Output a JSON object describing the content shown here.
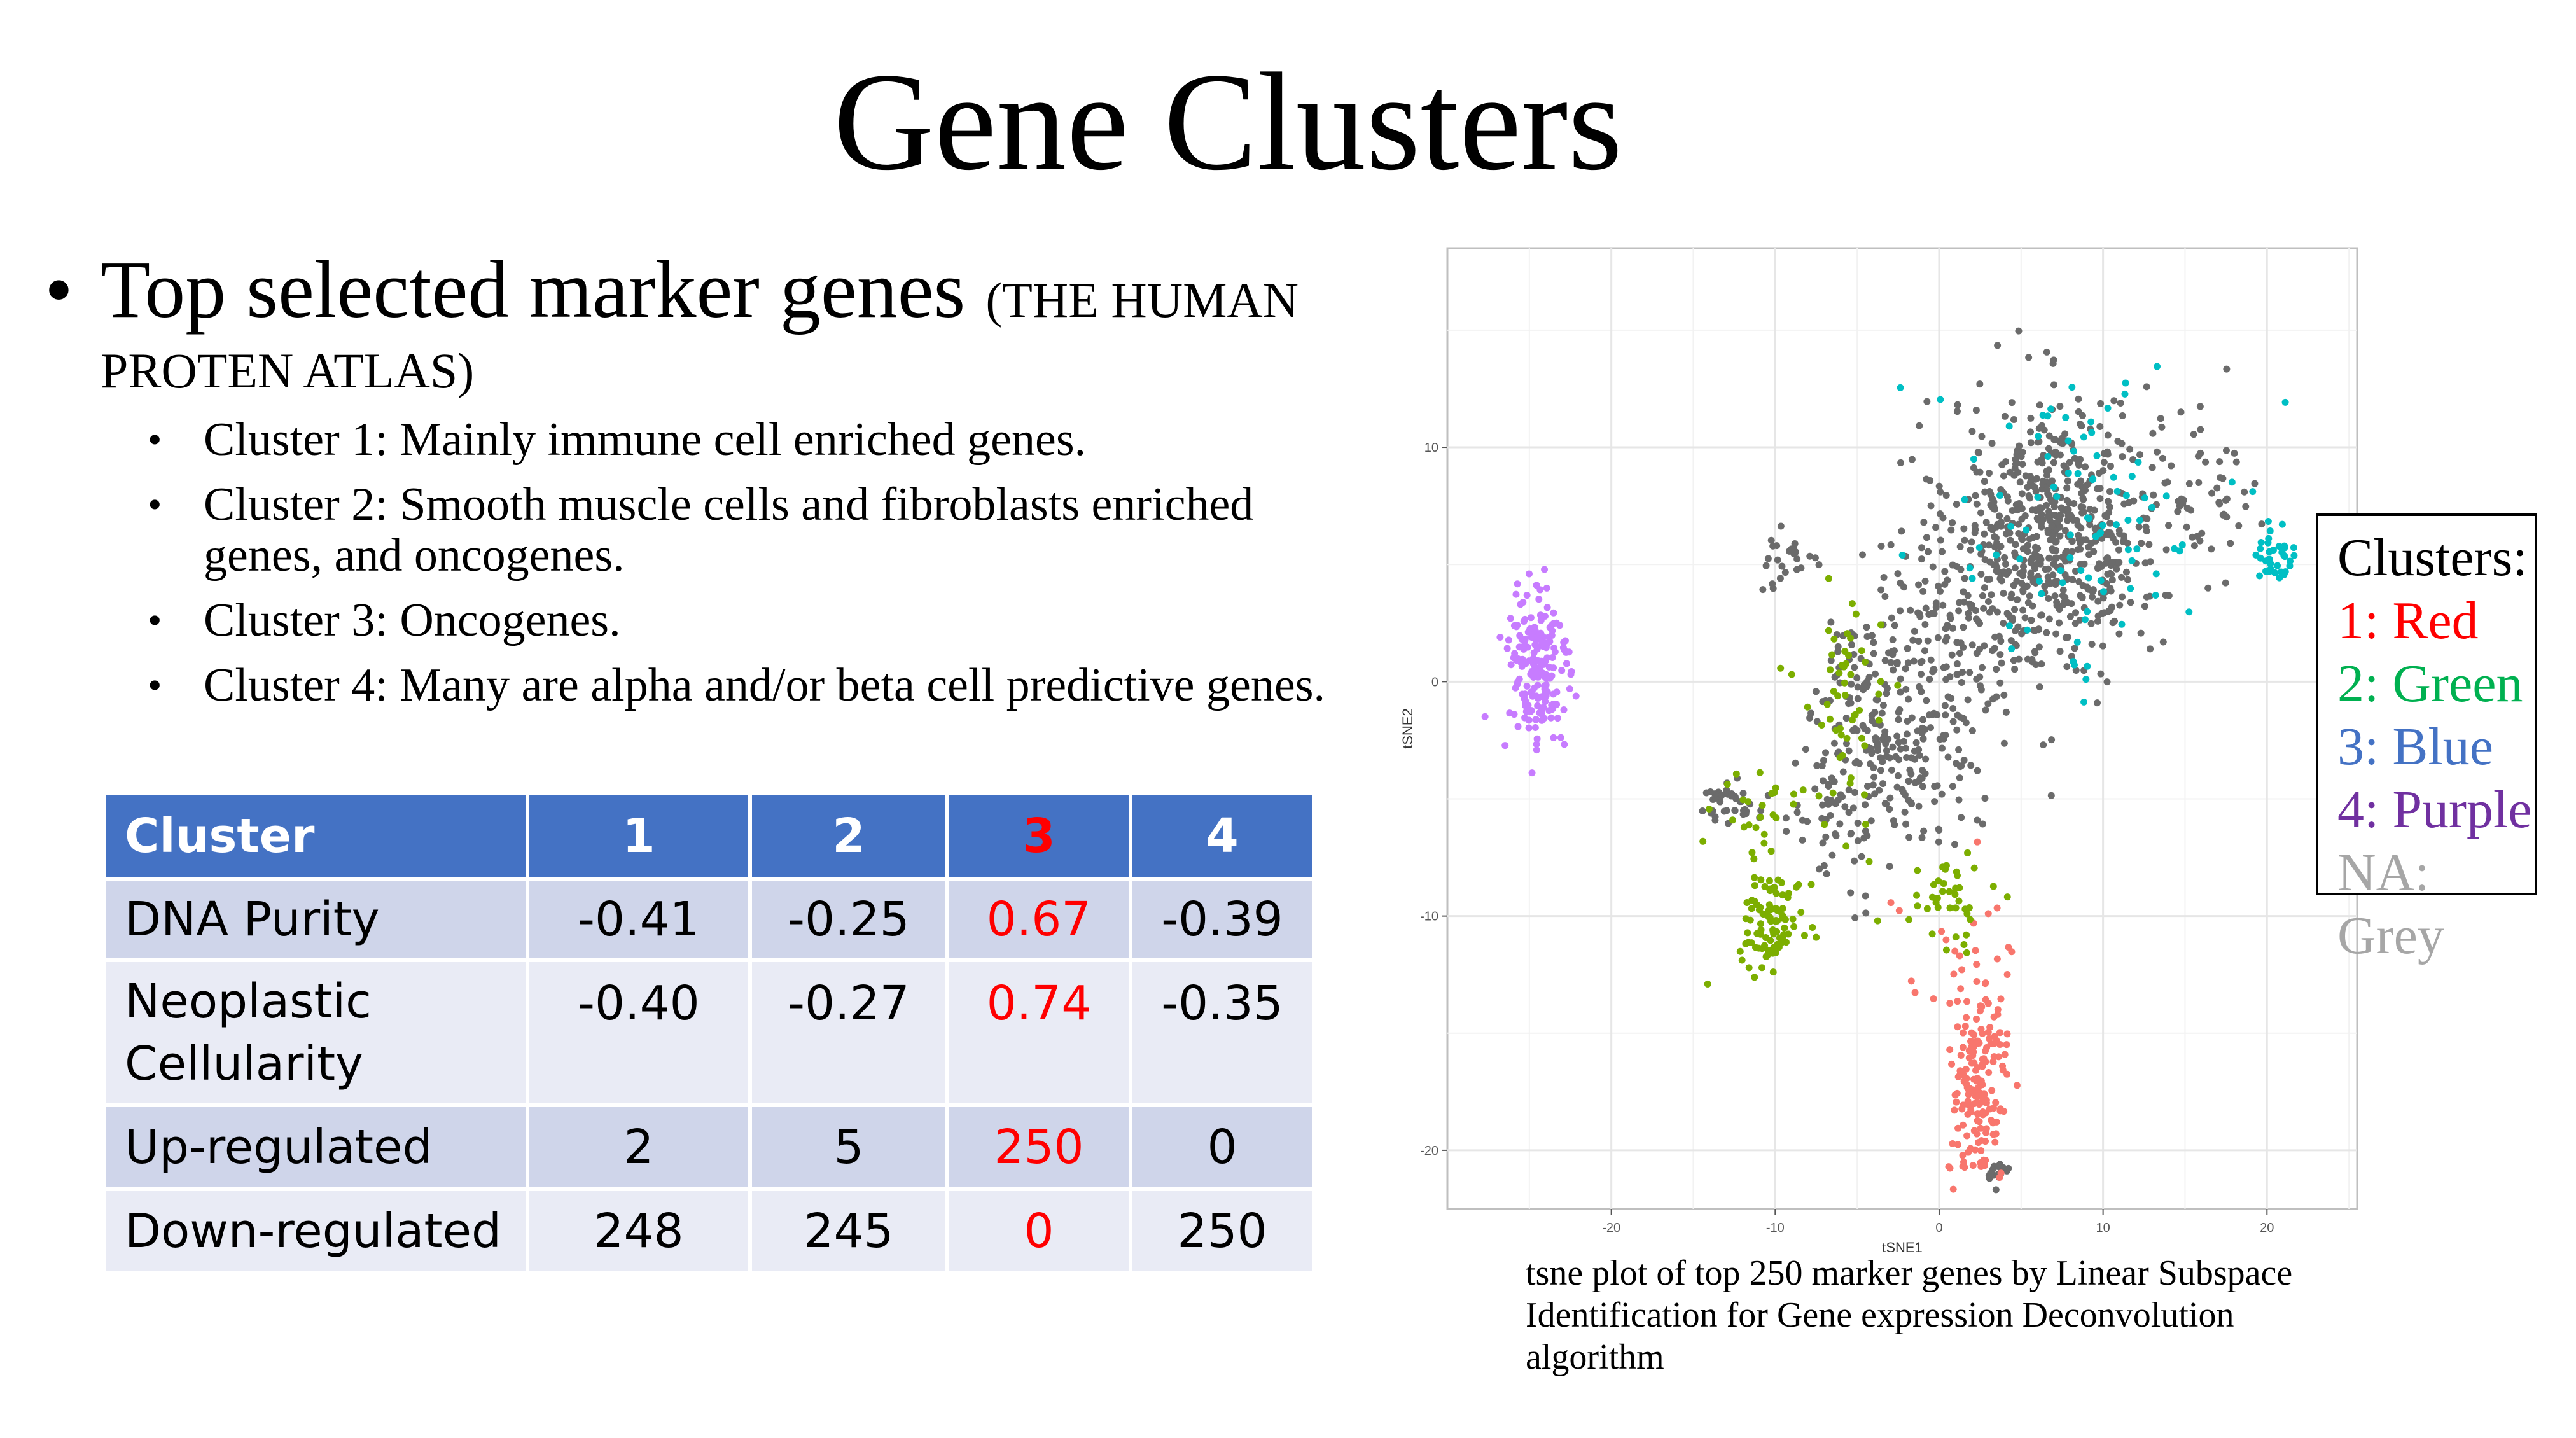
{
  "slide": {
    "title": "Gene Clusters",
    "bullet_main": "Top selected marker genes",
    "bullet_main_source_1": "(THE HUMAN",
    "bullet_main_source_2": "PROTEN ATLAS)",
    "sub_bullets": [
      "Cluster 1:  Mainly immune cell enriched genes.",
      "Cluster 2: Smooth muscle cells and fibroblasts enriched genes, and oncogenes.",
      "Cluster 3: Oncogenes.",
      "Cluster 4: Many are alpha and/or beta cell predictive genes."
    ],
    "caption": "tsne plot of top 250 marker genes by Linear Subspace Identification for Gene expression Deconvolution algorithm"
  },
  "table": {
    "header": [
      "Cluster",
      "1",
      "2",
      "3",
      "4"
    ],
    "highlight_color": "#ff0000",
    "header_bg": "#4472c4",
    "rows": [
      {
        "label": "DNA Purity",
        "values": [
          "-0.41",
          "-0.25",
          "0.67",
          "-0.39"
        ]
      },
      {
        "label": "Neoplastic Cellularity",
        "label_line1": "Neoplastic",
        "label_line2": "Cellularity",
        "values": [
          "-0.40",
          "-0.27",
          "0.74",
          "-0.35"
        ]
      },
      {
        "label": "Up-regulated",
        "values": [
          "2",
          "5",
          "250",
          "0"
        ]
      },
      {
        "label": "Down-regulated",
        "values": [
          "248",
          "245",
          "0",
          "250"
        ]
      }
    ]
  },
  "legend": {
    "title": "Clusters:",
    "items": [
      {
        "label": "1: Red",
        "color": "#ff0000"
      },
      {
        "label": "2: Green",
        "color": "#00b050"
      },
      {
        "label": "3: Blue",
        "color": "#4472c4"
      },
      {
        "label": "4: Purple",
        "color": "#7030a0"
      },
      {
        "label": "NA: Grey",
        "color": "#a6a6a6"
      }
    ]
  },
  "chart_data": {
    "type": "scatter",
    "xlabel": "tSNE1",
    "ylabel": "tSNE2",
    "xlim": [
      -30,
      25.5
    ],
    "ylim": [
      -22.5,
      18.5
    ],
    "x_ticks": [
      -20,
      -10,
      0,
      10,
      20
    ],
    "y_ticks": [
      -20,
      -10,
      0,
      10
    ],
    "grid": true,
    "series": [
      {
        "name": "1",
        "color": "#f8766d",
        "clusters": [
          {
            "cx": 2.4,
            "cy": -17.2,
            "sx": 0.9,
            "sy": 2.2,
            "n": 180
          },
          {
            "cx": 2.0,
            "cy": -12.0,
            "sx": 2.5,
            "sy": 2.5,
            "n": 18
          }
        ]
      },
      {
        "name": "2",
        "color": "#7cae00",
        "clusters": [
          {
            "cx": -10.2,
            "cy": -10.1,
            "sx": 1.0,
            "sy": 1.0,
            "n": 95
          },
          {
            "cx": 0.8,
            "cy": -9.5,
            "sx": 1.1,
            "sy": 0.8,
            "n": 40
          },
          {
            "cx": -6.0,
            "cy": -1.5,
            "sx": 1.4,
            "sy": 3.2,
            "n": 55
          },
          {
            "cx": -11.0,
            "cy": -5.5,
            "sx": 1.5,
            "sy": 1.0,
            "n": 25
          }
        ]
      },
      {
        "name": "3",
        "color": "#00bfc4",
        "clusters": [
          {
            "cx": 8.5,
            "cy": 7.0,
            "sx": 4.0,
            "sy": 3.5,
            "n": 90
          },
          {
            "cx": 20.5,
            "cy": 5.3,
            "sx": 0.7,
            "sy": 0.6,
            "n": 35
          }
        ]
      },
      {
        "name": "4",
        "color": "#c77cff",
        "clusters": [
          {
            "cx": -24.5,
            "cy": 0.5,
            "sx": 1.0,
            "sy": 2.0,
            "n": 190
          }
        ]
      },
      {
        "name": "NA",
        "color": "#6b6b6b",
        "clusters": [
          {
            "cx": 7.0,
            "cy": 6.5,
            "sx": 3.2,
            "sy": 2.8,
            "n": 600
          },
          {
            "cx": -3.0,
            "cy": -2.0,
            "sx": 2.5,
            "sy": 2.5,
            "n": 250
          },
          {
            "cx": 1.5,
            "cy": 2.0,
            "sx": 3.0,
            "sy": 3.0,
            "n": 160
          },
          {
            "cx": -13.0,
            "cy": -5.3,
            "sx": 1.0,
            "sy": 0.5,
            "n": 40
          },
          {
            "cx": -9.0,
            "cy": 5.3,
            "sx": 0.8,
            "sy": 0.6,
            "n": 25
          },
          {
            "cx": -6.0,
            "cy": -6.0,
            "sx": 1.5,
            "sy": 1.5,
            "n": 40
          },
          {
            "cx": 3.5,
            "cy": -21.0,
            "sx": 0.4,
            "sy": 0.3,
            "n": 18
          },
          {
            "cx": 15.5,
            "cy": 8.5,
            "sx": 2.0,
            "sy": 2.0,
            "n": 60
          }
        ]
      }
    ]
  }
}
